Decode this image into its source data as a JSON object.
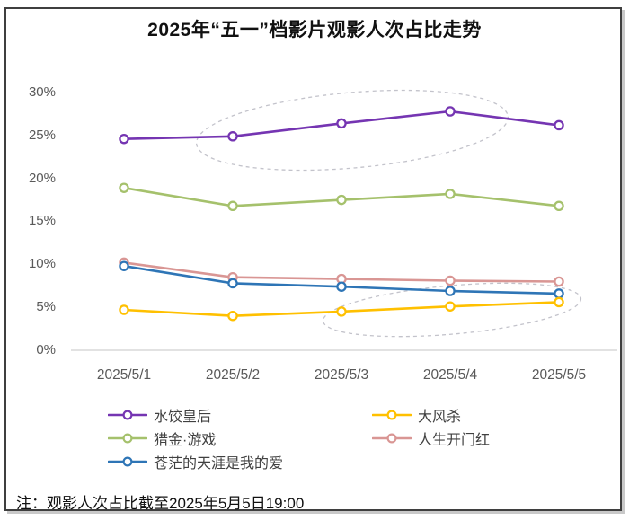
{
  "title": "2025年“五一”档影片观影人次占比走势",
  "note": "注：观影人次占比截至2025年5月5日19:00",
  "colors": {
    "axis_text": "#595959",
    "axis_line": "#d9d9d9",
    "highlight_ellipse": "#c3c3cb",
    "frame_border": "#3f3f3f"
  },
  "chart_data": {
    "type": "line",
    "title": "2025年“五一”档影片观影人次占比走势",
    "categories": [
      "2025/5/1",
      "2025/5/2",
      "2025/5/3",
      "2025/5/4",
      "2025/5/5"
    ],
    "series": [
      {
        "name": "水饺皇后",
        "color": "#7535B2",
        "values": [
          24.6,
          24.9,
          26.4,
          27.8,
          26.2
        ]
      },
      {
        "name": "大风杀",
        "color": "#FFC000",
        "values": [
          4.7,
          4.0,
          4.5,
          5.1,
          5.6
        ]
      },
      {
        "name": "猎金·游戏",
        "color": "#A5C16C",
        "values": [
          18.9,
          16.8,
          17.5,
          18.2,
          16.8
        ]
      },
      {
        "name": "人生开门红",
        "color": "#D99694",
        "values": [
          10.2,
          8.5,
          8.3,
          8.1,
          8.0
        ]
      },
      {
        "name": "苍茫的天涯是我的爱",
        "color": "#2E75B6",
        "values": [
          9.8,
          7.8,
          7.4,
          6.9,
          6.6
        ]
      }
    ],
    "y_ticks": [
      "0%",
      "5%",
      "10%",
      "15%",
      "20%",
      "25%",
      "30%"
    ],
    "ylim": [
      0,
      30
    ],
    "xlabel": "",
    "ylabel": "",
    "grid": false,
    "legend_position": "bottom",
    "annotations": [
      {
        "type": "ellipse",
        "target": "水饺皇后",
        "desc": "dashed highlight around 水饺皇后 trend 5/2–5/4"
      },
      {
        "type": "ellipse",
        "target": "大风杀",
        "desc": "dashed highlight around 大风杀 rise 5/3–5/5"
      }
    ]
  }
}
